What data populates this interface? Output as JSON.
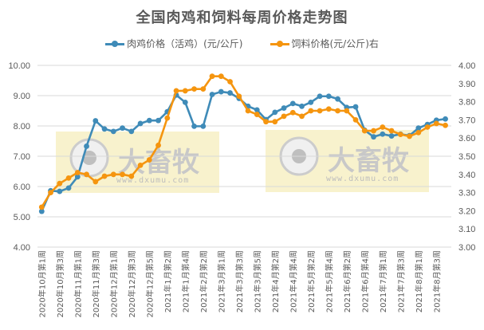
{
  "chart_data": {
    "type": "line",
    "title": "全国肉鸡和饲料每周价格走势图",
    "legend_position": "top",
    "grid": true,
    "x": [
      "2020年10月第1周",
      "2020年10月第2周",
      "2020年10月第3周",
      "2020年10月第4周",
      "2020年11月第1周",
      "2020年11月第2周",
      "2020年11月第3周",
      "2020年11月第4周",
      "2020年12月第1周",
      "2020年12月第2周",
      "2020年12月第3周",
      "2020年12月第4周",
      "2020年12月第5周",
      "2021年1月第1周",
      "2021年1月第2周",
      "2021年1月第3周",
      "2021年1月第4周",
      "2021年2月第1周",
      "2021年2月第2周",
      "2021年2月第3周",
      "2021年3月第1周",
      "2021年3月第2周",
      "2021年3月第3周",
      "2021年3月第4周",
      "2021年3月第5周",
      "2021年4月第1周",
      "2021年4月第2周",
      "2021年4月第3周",
      "2021年4月第4周",
      "2021年5月第1周",
      "2021年5月第2周",
      "2021年5月第3周",
      "2021年5月第4周",
      "2021年6月第1周",
      "2021年6月第2周",
      "2021年6月第3周",
      "2021年6月第4周",
      "2021年6月第5周",
      "2021年7月第1周",
      "2021年7月第2周",
      "2021年7月第3周",
      "2021年7月第4周",
      "2021年8月第1周",
      "2021年8月第2周",
      "2021年8月第3周",
      "2021年8月第4周"
    ],
    "x_tick_labels": [
      "2020年10月第1周",
      "2020年10月第3周",
      "2020年11月第1周",
      "2020年11月第3周",
      "2020年12月第1周",
      "2020年12月第3周",
      "2020年12月第5周",
      "2021年1月第2周",
      "2021年1月第4周",
      "2021年2月第2周",
      "2021年3月第1周",
      "2021年3月第3周",
      "2021年3月第5周",
      "2021年4月第2周",
      "2021年4月第4周",
      "2021年5月第2周",
      "2021年5月第4周",
      "2021年6月第2周",
      "2021年6月第4周",
      "2021年7月第1周",
      "2021年7月第3周",
      "2021年8月第1周",
      "2021年8月第3周"
    ],
    "series": [
      {
        "name": "肉鸡价格（活鸡）(元/公斤)",
        "axis": "left",
        "color": "#3f8bb8",
        "values": [
          5.18,
          5.86,
          5.84,
          5.95,
          6.32,
          7.33,
          8.17,
          7.9,
          7.82,
          7.93,
          7.82,
          8.08,
          8.18,
          8.18,
          8.47,
          9.02,
          8.78,
          7.99,
          7.99,
          9.04,
          9.13,
          9.09,
          8.91,
          8.65,
          8.53,
          8.21,
          8.45,
          8.59,
          8.74,
          8.65,
          8.78,
          8.98,
          8.98,
          8.89,
          8.61,
          8.63,
          7.86,
          7.64,
          7.73,
          7.67,
          7.73,
          7.68,
          7.93,
          8.05,
          8.19,
          8.23
        ]
      },
      {
        "name": "饲料价格(元/公斤)右",
        "axis": "right",
        "color": "#f5950f",
        "values": [
          3.22,
          3.3,
          3.35,
          3.38,
          3.41,
          3.4,
          3.36,
          3.39,
          3.4,
          3.4,
          3.39,
          3.45,
          3.48,
          3.56,
          3.71,
          3.86,
          3.86,
          3.87,
          3.87,
          3.94,
          3.94,
          3.91,
          3.83,
          3.75,
          3.73,
          3.69,
          3.69,
          3.72,
          3.74,
          3.72,
          3.75,
          3.75,
          3.76,
          3.75,
          3.75,
          3.7,
          3.64,
          3.64,
          3.66,
          3.64,
          3.62,
          3.61,
          3.63,
          3.66,
          3.68,
          3.67
        ]
      }
    ],
    "xlabel": "",
    "ylabel": "",
    "ylim": [
      4.0,
      10.0
    ],
    "y_ticks": [
      "4.00",
      "5.00",
      "6.00",
      "7.00",
      "8.00",
      "9.00",
      "10.00"
    ],
    "y2lim": [
      3.0,
      4.0
    ],
    "y2_ticks": [
      "3.00",
      "3.10",
      "3.20",
      "3.30",
      "3.40",
      "3.50",
      "3.60",
      "3.70",
      "3.80",
      "3.90",
      "4.00"
    ]
  },
  "legend": {
    "items": [
      {
        "label": "肉鸡价格（活鸡）(元/公斤)",
        "color": "#3f8bb8"
      },
      {
        "label": "饲料价格(元/公斤)右",
        "color": "#f5950f"
      }
    ]
  },
  "watermark": {
    "brand": "大畜牧",
    "url": "www.dxumu.com"
  }
}
